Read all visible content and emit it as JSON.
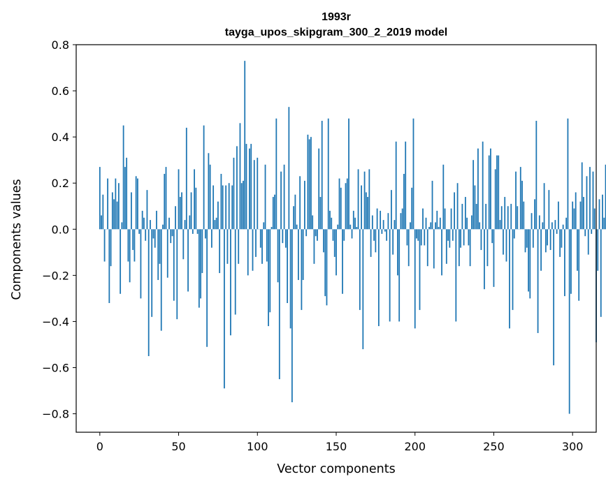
{
  "chart_data": {
    "type": "bar",
    "title": "1993r",
    "subtitle": "tayga_upos_skipgram_300_2_2019 model",
    "xlabel": "Vector components",
    "ylabel": "Components values",
    "xlim": [
      -15,
      315
    ],
    "ylim": [
      -0.88,
      0.8
    ],
    "xticks": [
      0,
      50,
      100,
      150,
      200,
      250,
      300
    ],
    "xtick_labels": [
      "0",
      "50",
      "100",
      "150",
      "200",
      "250",
      "300"
    ],
    "yticks": [
      0.8,
      0.6,
      0.4,
      0.2,
      0.0,
      -0.2,
      -0.4,
      -0.6,
      -0.8
    ],
    "ytick_labels": [
      "0.8",
      "0.6",
      "0.4",
      "0.2",
      "0.0",
      "−0.2",
      "−0.4",
      "−0.6",
      "−0.8"
    ],
    "grid": false,
    "bar_color": "#1f77b4",
    "series": [
      {
        "values": [
          0.27,
          0.06,
          0.15,
          -0.14,
          0.0,
          0.22,
          -0.32,
          -0.16,
          0.16,
          0.13,
          0.22,
          0.12,
          0.2,
          -0.28,
          0.03,
          0.45,
          0.27,
          0.31,
          -0.14,
          -0.23,
          0.16,
          -0.09,
          -0.14,
          0.23,
          0.22,
          -0.02,
          -0.3,
          0.08,
          0.05,
          -0.05,
          0.17,
          -0.55,
          0.04,
          -0.38,
          -0.04,
          -0.08,
          0.08,
          -0.22,
          -0.15,
          -0.44,
          0.02,
          0.24,
          0.27,
          -0.21,
          0.05,
          -0.06,
          -0.03,
          -0.31,
          0.1,
          -0.39,
          0.26,
          0.14,
          0.16,
          -0.13,
          0.04,
          0.44,
          -0.27,
          0.06,
          0.16,
          -0.02,
          0.26,
          0.18,
          -0.02,
          -0.34,
          -0.3,
          -0.19,
          0.45,
          -0.04,
          -0.51,
          0.33,
          0.28,
          -0.08,
          0.19,
          0.04,
          0.05,
          0.12,
          -0.19,
          0.24,
          0.19,
          -0.69,
          0.19,
          -0.15,
          0.2,
          -0.46,
          0.19,
          0.31,
          -0.37,
          0.36,
          -0.15,
          0.46,
          0.2,
          0.21,
          0.73,
          0.37,
          -0.2,
          0.35,
          0.37,
          -0.18,
          0.3,
          -0.12,
          0.31,
          0.0,
          -0.08,
          -0.15,
          0.03,
          0.28,
          -0.14,
          -0.42,
          -0.36,
          0.01,
          0.14,
          0.15,
          0.48,
          -0.23,
          -0.65,
          0.25,
          -0.06,
          0.28,
          -0.08,
          -0.32,
          0.53,
          -0.43,
          -0.75,
          0.1,
          0.15,
          0.02,
          -0.22,
          0.23,
          -0.35,
          -0.22,
          0.21,
          -0.03,
          0.41,
          0.39,
          0.4,
          0.06,
          -0.15,
          -0.03,
          -0.05,
          0.35,
          0.14,
          0.47,
          -0.1,
          -0.29,
          -0.33,
          0.48,
          0.08,
          0.05,
          -0.05,
          -0.12,
          -0.2,
          0.02,
          0.22,
          0.18,
          -0.28,
          -0.05,
          0.2,
          0.22,
          0.48,
          0.02,
          -0.04,
          0.08,
          0.05,
          0.01,
          0.26,
          -0.35,
          0.19,
          -0.52,
          0.25,
          0.16,
          0.14,
          0.26,
          -0.12,
          0.06,
          -0.05,
          -0.1,
          0.09,
          -0.42,
          0.08,
          -0.02,
          0.04,
          -0.01,
          -0.05,
          0.07,
          -0.4,
          0.17,
          -0.11,
          0.04,
          0.38,
          -0.2,
          -0.4,
          0.07,
          0.09,
          0.24,
          0.38,
          -0.07,
          -0.16,
          0.03,
          0.18,
          0.48,
          -0.43,
          -0.04,
          -0.05,
          -0.35,
          -0.07,
          0.09,
          -0.07,
          0.05,
          -0.16,
          0.01,
          0.03,
          0.21,
          -0.17,
          0.03,
          0.08,
          0.01,
          0.05,
          -0.2,
          0.28,
          0.09,
          -0.15,
          -0.05,
          -0.08,
          0.09,
          -0.05,
          0.16,
          -0.4,
          0.2,
          -0.16,
          -0.08,
          0.11,
          -0.07,
          0.14,
          0.05,
          -0.07,
          -0.16,
          0.06,
          0.3,
          0.19,
          0.11,
          0.35,
          0.03,
          -0.09,
          0.38,
          -0.26,
          0.11,
          -0.16,
          0.32,
          0.35,
          -0.06,
          -0.25,
          0.26,
          0.32,
          0.32,
          0.04,
          0.1,
          -0.11,
          0.14,
          -0.14,
          0.1,
          -0.43,
          0.11,
          -0.35,
          -0.04,
          0.25,
          0.1,
          0.0,
          0.27,
          0.21,
          0.12,
          -0.1,
          -0.08,
          -0.27,
          -0.3,
          0.07,
          -0.08,
          0.13,
          0.47,
          -0.45,
          0.06,
          -0.18,
          0.03,
          0.2,
          -0.1,
          -0.07,
          0.17,
          -0.09,
          0.03,
          -0.59,
          0.04,
          -0.02,
          0.12,
          -0.12,
          -0.08,
          0.02,
          -0.29,
          0.05,
          0.48,
          -0.8,
          -0.28,
          0.12,
          0.09,
          0.16,
          -0.18,
          -0.31,
          0.12,
          0.29,
          0.14,
          -0.03,
          0.23,
          -0.11,
          0.27,
          -0.02,
          0.25,
          0.09,
          -0.49,
          -0.18,
          0.13,
          -0.38,
          0.15,
          0.05,
          0.28,
          0.0
        ]
      }
    ]
  }
}
